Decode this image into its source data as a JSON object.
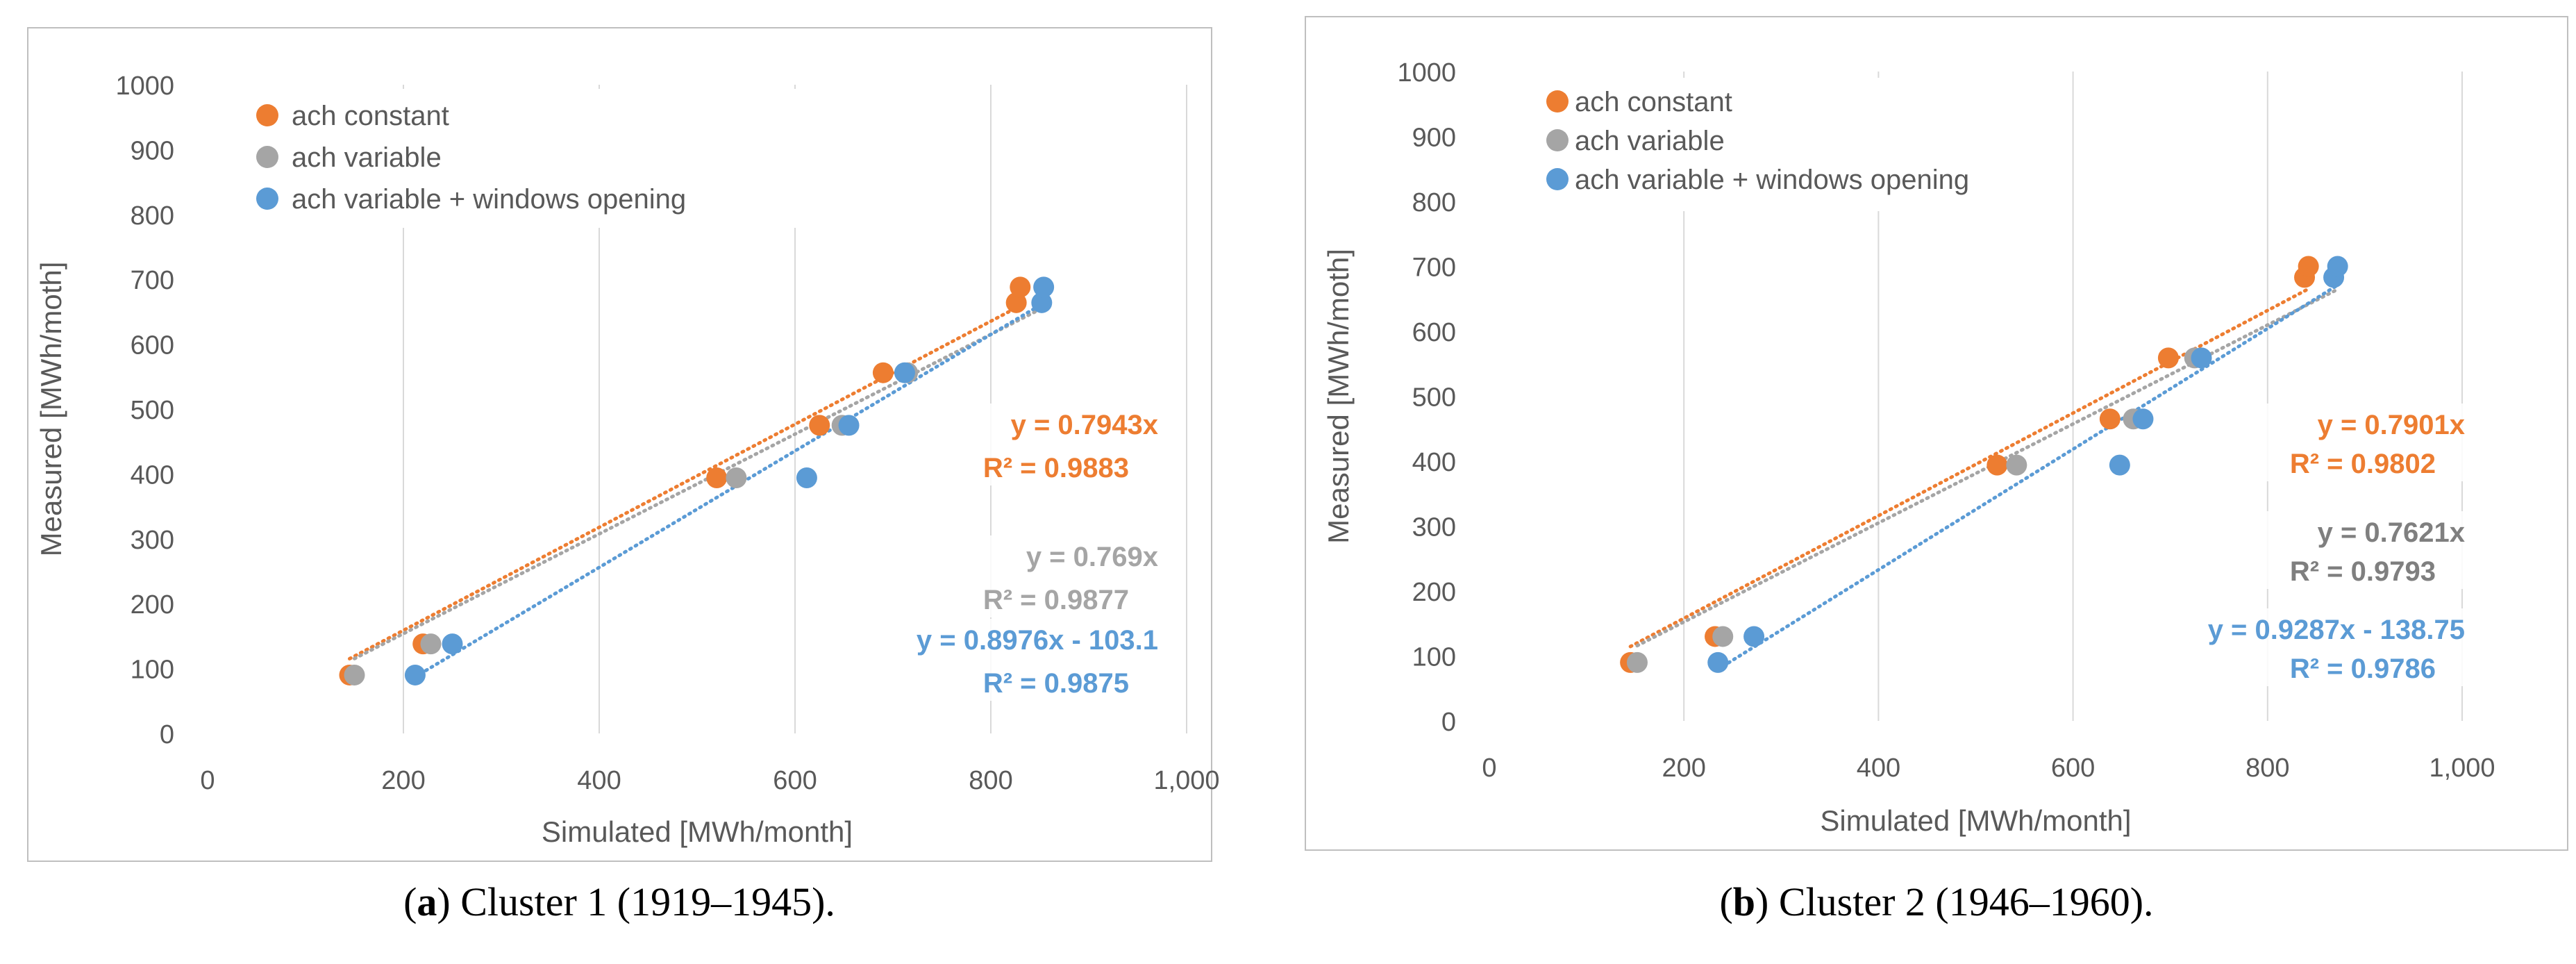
{
  "chart_data": [
    {
      "type": "scatter",
      "panel_caption": {
        "letter": "a",
        "text": ") Cluster 1 (1919–1945)."
      },
      "xlabel": "Simulated [MWh/month]",
      "ylabel": "Measured [MWh/moth]",
      "xlim": [
        0,
        1000
      ],
      "ylim": [
        0,
        1000
      ],
      "x_ticks": [
        "0",
        "200",
        "400",
        "600",
        "800",
        "1,000"
      ],
      "y_ticks": [
        "0",
        "100",
        "200",
        "300",
        "400",
        "500",
        "600",
        "700",
        "800",
        "900",
        "1000"
      ],
      "grid": "vertical",
      "legend_position": "top-left",
      "series": [
        {
          "name": "ach constant",
          "color": "#ED7D31",
          "points": [
            [
              145,
              90
            ],
            [
              220,
              138
            ],
            [
              520,
              394
            ],
            [
              625,
              475
            ],
            [
              690,
              556
            ],
            [
              826,
              664
            ],
            [
              830,
              688
            ]
          ],
          "trendline": {
            "slope": 0.7943,
            "intercept": 0,
            "x_range": [
              145,
              830
            ]
          },
          "equation": "y = 0.7943x",
          "r2": "R² = 0.9883"
        },
        {
          "name": "ach variable",
          "color": "#A5A5A5",
          "points": [
            [
              150,
              90
            ],
            [
              228,
              138
            ],
            [
              540,
              394
            ],
            [
              648,
              475
            ],
            [
              715,
              556
            ]
          ],
          "trendline": {
            "slope": 0.769,
            "intercept": 0,
            "x_range": [
              150,
              855
            ]
          },
          "equation": "y = 0.769x",
          "r2": "R² = 0.9877"
        },
        {
          "name": "ach variable +  windows opening",
          "color": "#5B9BD5",
          "points": [
            [
              212,
              90
            ],
            [
              250,
              138
            ],
            [
              612,
              394
            ],
            [
              655,
              475
            ],
            [
              712,
              556
            ],
            [
              852,
              664
            ],
            [
              854,
              688
            ]
          ],
          "trendline": {
            "slope": 0.8976,
            "intercept": -103.1,
            "x_range": [
              212,
              854
            ]
          },
          "equation": "y = 0.8976x - 103.1",
          "r2": "R² = 0.9875"
        }
      ]
    },
    {
      "type": "scatter",
      "panel_caption": {
        "letter": "b",
        "text": ") Cluster 2 (1946–1960)."
      },
      "xlabel": "Simulated [MWh/month]",
      "ylabel": "Measured [MWh/moth]",
      "xlim": [
        0,
        1000
      ],
      "ylim": [
        0,
        1000
      ],
      "x_ticks": [
        "0",
        "200",
        "400",
        "600",
        "800",
        "1,000"
      ],
      "y_ticks": [
        "0",
        "100",
        "200",
        "300",
        "400",
        "500",
        "600",
        "700",
        "800",
        "900",
        "1000"
      ],
      "grid": "vertical",
      "legend_position": "top-left",
      "series": [
        {
          "name": "ach constant",
          "color": "#ED7D31",
          "points": [
            [
              145,
              90
            ],
            [
              232,
              130
            ],
            [
              522,
              394
            ],
            [
              638,
              465
            ],
            [
              698,
              559
            ],
            [
              838,
              683
            ],
            [
              842,
              700
            ]
          ],
          "trendline": {
            "slope": 0.7901,
            "intercept": 0,
            "x_range": [
              145,
              842
            ]
          },
          "equation": "y = 0.7901x",
          "r2": "R² = 0.9802"
        },
        {
          "name": "ach variable",
          "color": "#A5A5A5",
          "points": [
            [
              152,
              90
            ],
            [
              240,
              130
            ],
            [
              542,
              394
            ],
            [
              662,
              465
            ],
            [
              725,
              559
            ]
          ],
          "trendline": {
            "slope": 0.7621,
            "intercept": 0,
            "x_range": [
              152,
              870
            ]
          },
          "equation": "y = 0.7621x",
          "r2": "R² = 0.9793"
        },
        {
          "name": "ach variable +  windows opening",
          "color": "#5B9BD5",
          "points": [
            [
              235,
              90
            ],
            [
              272,
              130
            ],
            [
              648,
              394
            ],
            [
              672,
              465
            ],
            [
              732,
              559
            ],
            [
              868,
              683
            ],
            [
              872,
              700
            ]
          ],
          "trendline": {
            "slope": 0.9287,
            "intercept": -138.75,
            "x_range": [
              235,
              872
            ]
          },
          "equation": "y = 0.9287x - 138.75",
          "r2": "R² = 0.9786"
        }
      ]
    }
  ]
}
